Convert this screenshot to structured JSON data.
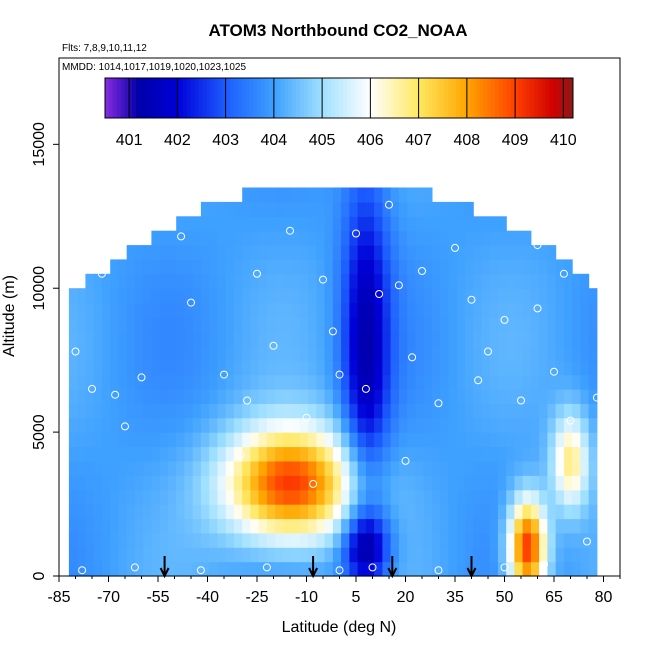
{
  "chart_data": {
    "type": "heatmap",
    "title": "ATOM3 Northbound CO2_NOAA",
    "subtitle_flights": "Flts: 7,8,9,10,11,12",
    "subtitle_dates": "MMDD: 1014,1017,1019,1020,1023,1025",
    "xlabel": "Latitude (deg N)",
    "ylabel": "Altitude (m)",
    "xlim": [
      -85,
      85
    ],
    "ylim": [
      0,
      18000
    ],
    "x_tick_labels": [
      "-85",
      "-70",
      "-55",
      "-40",
      "-25",
      "-10",
      "5",
      "20",
      "35",
      "50",
      "65",
      "80"
    ],
    "y_tick_labels": [
      "0",
      "5000",
      "10000",
      "15000"
    ],
    "colorbar": {
      "labels": [
        "401",
        "402",
        "403",
        "404",
        "405",
        "406",
        "407",
        "408",
        "409",
        "410"
      ],
      "range": [
        400.5,
        410.2
      ],
      "colors": [
        "#8a2be2",
        "#0000a8",
        "#0000d8",
        "#1c5cff",
        "#3ea0ff",
        "#9fe0ff",
        "#ffffff",
        "#ffe860",
        "#ffa500",
        "#ff4000",
        "#d00000",
        "#8b1a1a"
      ],
      "color_stops": [
        400.5,
        401.2,
        402.0,
        403.0,
        404.0,
        405.0,
        406.0,
        407.0,
        408.0,
        409.0,
        409.8,
        410.2
      ]
    },
    "background_value": 404.0,
    "features": [
      {
        "lat": -15,
        "alt": 3200,
        "value": 409.2
      },
      {
        "lat": 8,
        "alt": 8000,
        "value": 401.5
      },
      {
        "lat": 8,
        "alt": 1000,
        "value": 401.3
      },
      {
        "lat": 57,
        "alt": 1000,
        "value": 409.4
      },
      {
        "lat": 70,
        "alt": 4000,
        "value": 406.8
      }
    ],
    "arrows_lat": [
      -53,
      -8,
      16,
      40
    ],
    "observations": [
      {
        "lat": -80,
        "alt": 7800
      },
      {
        "lat": -75,
        "alt": 6500
      },
      {
        "lat": -72,
        "alt": 10500
      },
      {
        "lat": -68,
        "alt": 6300
      },
      {
        "lat": -65,
        "alt": 5200
      },
      {
        "lat": -60,
        "alt": 6900
      },
      {
        "lat": -48,
        "alt": 11800
      },
      {
        "lat": -45,
        "alt": 9500
      },
      {
        "lat": -35,
        "alt": 7000
      },
      {
        "lat": -30,
        "alt": 4200
      },
      {
        "lat": -25,
        "alt": 10500
      },
      {
        "lat": -20,
        "alt": 8000
      },
      {
        "lat": -15,
        "alt": 12000
      },
      {
        "lat": -10,
        "alt": 5500
      },
      {
        "lat": -8,
        "alt": 3200
      },
      {
        "lat": -5,
        "alt": 10300
      },
      {
        "lat": 0,
        "alt": 7000
      },
      {
        "lat": 5,
        "alt": 11900
      },
      {
        "lat": 8,
        "alt": 6500
      },
      {
        "lat": 10,
        "alt": 300
      },
      {
        "lat": 12,
        "alt": 9800
      },
      {
        "lat": 15,
        "alt": 12900
      },
      {
        "lat": 18,
        "alt": 10100
      },
      {
        "lat": 20,
        "alt": 4000
      },
      {
        "lat": 25,
        "alt": 10600
      },
      {
        "lat": 30,
        "alt": 6000
      },
      {
        "lat": 35,
        "alt": 11400
      },
      {
        "lat": 40,
        "alt": 9600
      },
      {
        "lat": 45,
        "alt": 7800
      },
      {
        "lat": 50,
        "alt": 8900
      },
      {
        "lat": 55,
        "alt": 6100
      },
      {
        "lat": 60,
        "alt": 9300
      },
      {
        "lat": 65,
        "alt": 7100
      },
      {
        "lat": 70,
        "alt": 5400
      },
      {
        "lat": 75,
        "alt": 1200
      },
      {
        "lat": 78,
        "alt": 6200
      },
      {
        "lat": -78,
        "alt": 200
      },
      {
        "lat": -62,
        "alt": 300
      },
      {
        "lat": -42,
        "alt": 200
      },
      {
        "lat": -22,
        "alt": 300
      },
      {
        "lat": 0,
        "alt": 200
      },
      {
        "lat": 30,
        "alt": 200
      },
      {
        "lat": 50,
        "alt": 300
      },
      {
        "lat": 62,
        "alt": 400
      },
      {
        "lat": -28,
        "alt": 6100
      },
      {
        "lat": -2,
        "alt": 8500
      },
      {
        "lat": 22,
        "alt": 7600
      },
      {
        "lat": 42,
        "alt": 6800
      },
      {
        "lat": 60,
        "alt": 11500
      },
      {
        "lat": 68,
        "alt": 10500
      }
    ]
  }
}
